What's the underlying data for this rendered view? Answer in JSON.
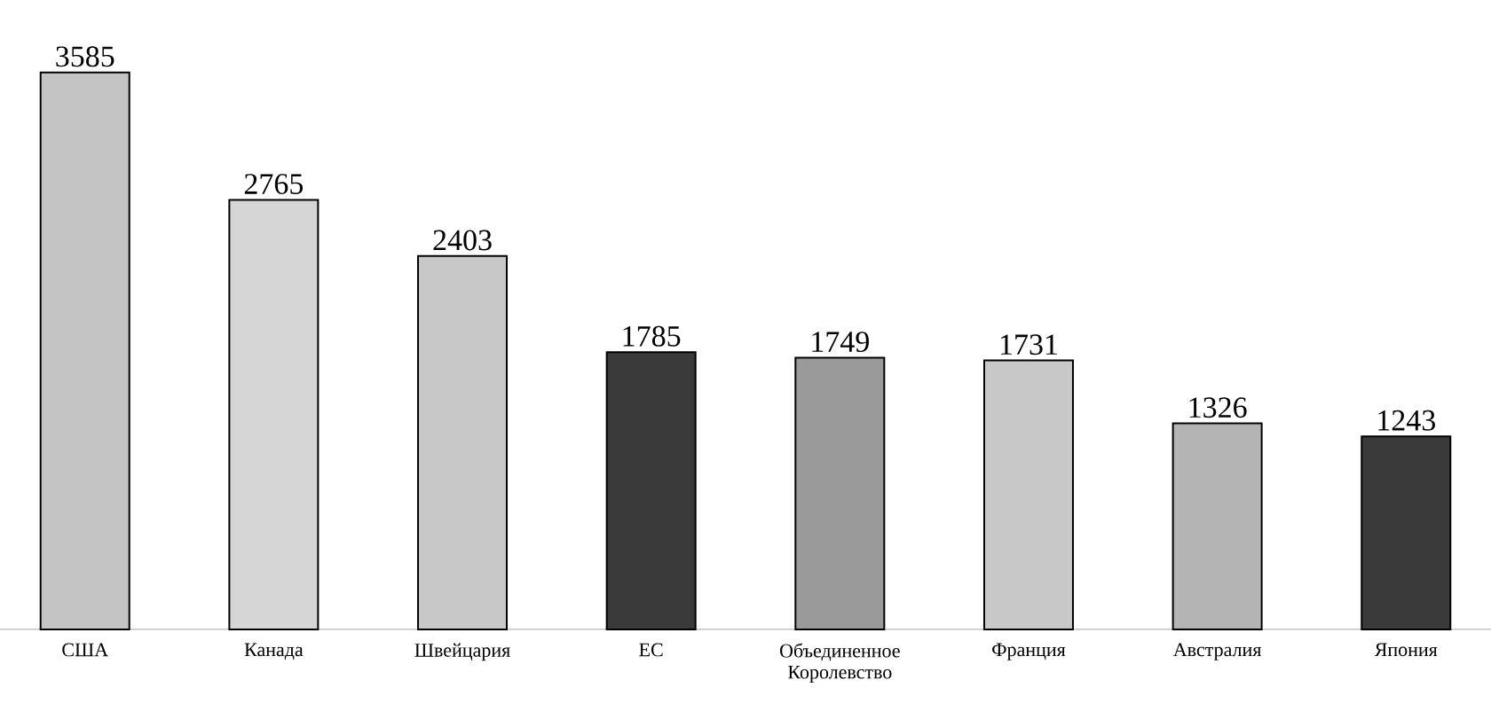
{
  "chart_data": {
    "type": "bar",
    "categories": [
      "США",
      "Канада",
      "Швейцария",
      "ЕС",
      "Объединенное Королевство",
      "Франция",
      "Австралия",
      "Япония"
    ],
    "values": [
      3585,
      2765,
      2403,
      1785,
      1749,
      1731,
      1326,
      1243
    ],
    "colors": [
      "#c4c4c4",
      "#d6d6d6",
      "#c8c8c8",
      "#3a3a3a",
      "#9a9a9a",
      "#c8c8c8",
      "#b4b4b4",
      "#3a3a3a"
    ],
    "data_labels": true
  }
}
